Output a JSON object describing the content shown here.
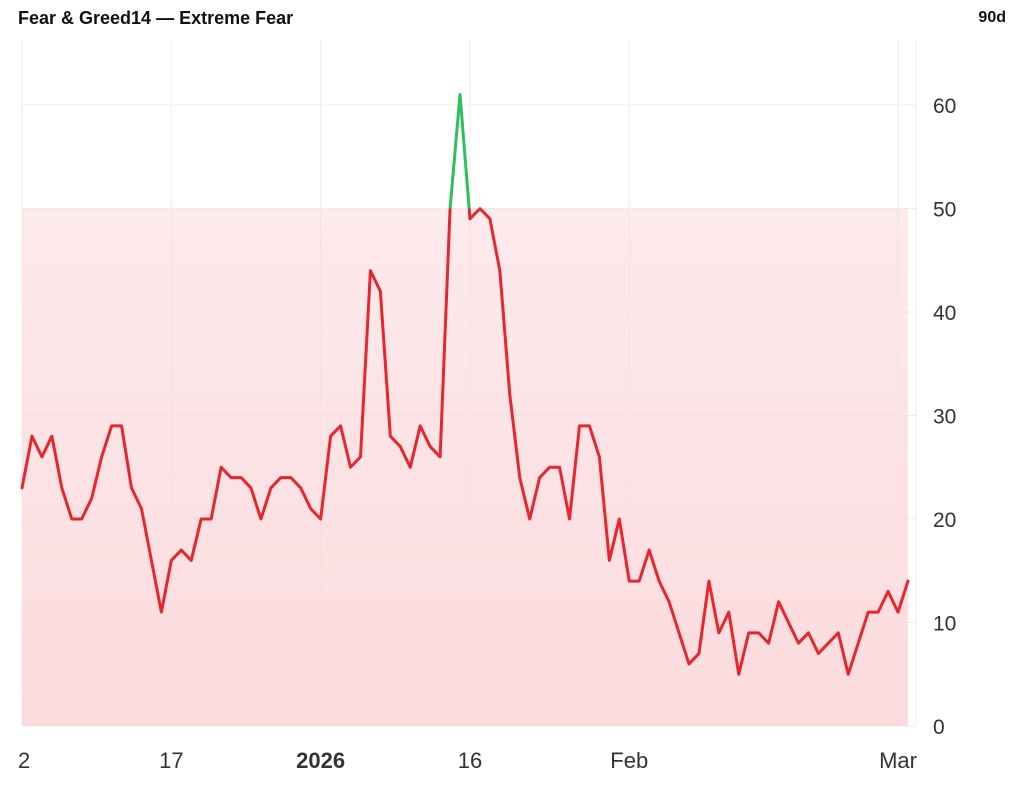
{
  "header": {
    "name": "Fear & Greed",
    "value": "14",
    "separator": " — ",
    "label": "Extreme Fear",
    "range": "90d"
  },
  "colors": {
    "fear": "#e8262e",
    "greed": "#2ec05c",
    "fill_top": "#fbd9dc",
    "grid": "#ececec"
  },
  "chart_data": {
    "type": "line",
    "title": "Fear & Greed14 — Extreme Fear",
    "ylim": [
      0,
      65
    ],
    "y_ticks": [
      0,
      10,
      20,
      30,
      40,
      50,
      60
    ],
    "x_ticks": [
      {
        "index": 0,
        "label": "2",
        "bold": false
      },
      {
        "index": 15,
        "label": "17",
        "bold": false
      },
      {
        "index": 30,
        "label": "2026",
        "bold": true
      },
      {
        "index": 45,
        "label": "16",
        "bold": false
      },
      {
        "index": 61,
        "label": "Feb",
        "bold": false
      },
      {
        "index": 88,
        "label": "Mar",
        "bold": false
      }
    ],
    "threshold": 50,
    "grid": true,
    "series": [
      {
        "values": [
          23,
          28,
          26,
          28,
          23,
          20,
          20,
          22,
          26,
          29,
          29,
          23,
          21,
          16,
          11,
          16,
          17,
          16,
          20,
          20,
          25,
          24,
          24,
          23,
          20,
          23,
          24,
          24,
          23,
          21,
          20,
          28,
          29,
          25,
          26,
          44,
          42,
          28,
          27,
          25,
          29,
          27,
          26,
          50,
          61,
          49,
          50,
          49,
          44,
          32,
          24,
          20,
          24,
          25,
          25,
          20,
          29,
          29,
          26,
          16,
          20,
          14,
          14,
          17,
          14,
          12,
          9,
          6,
          7,
          14,
          9,
          11,
          5,
          9,
          9,
          8,
          12,
          10,
          8,
          9,
          7,
          8,
          9,
          5,
          8,
          11,
          11,
          13,
          11,
          14
        ]
      }
    ]
  }
}
